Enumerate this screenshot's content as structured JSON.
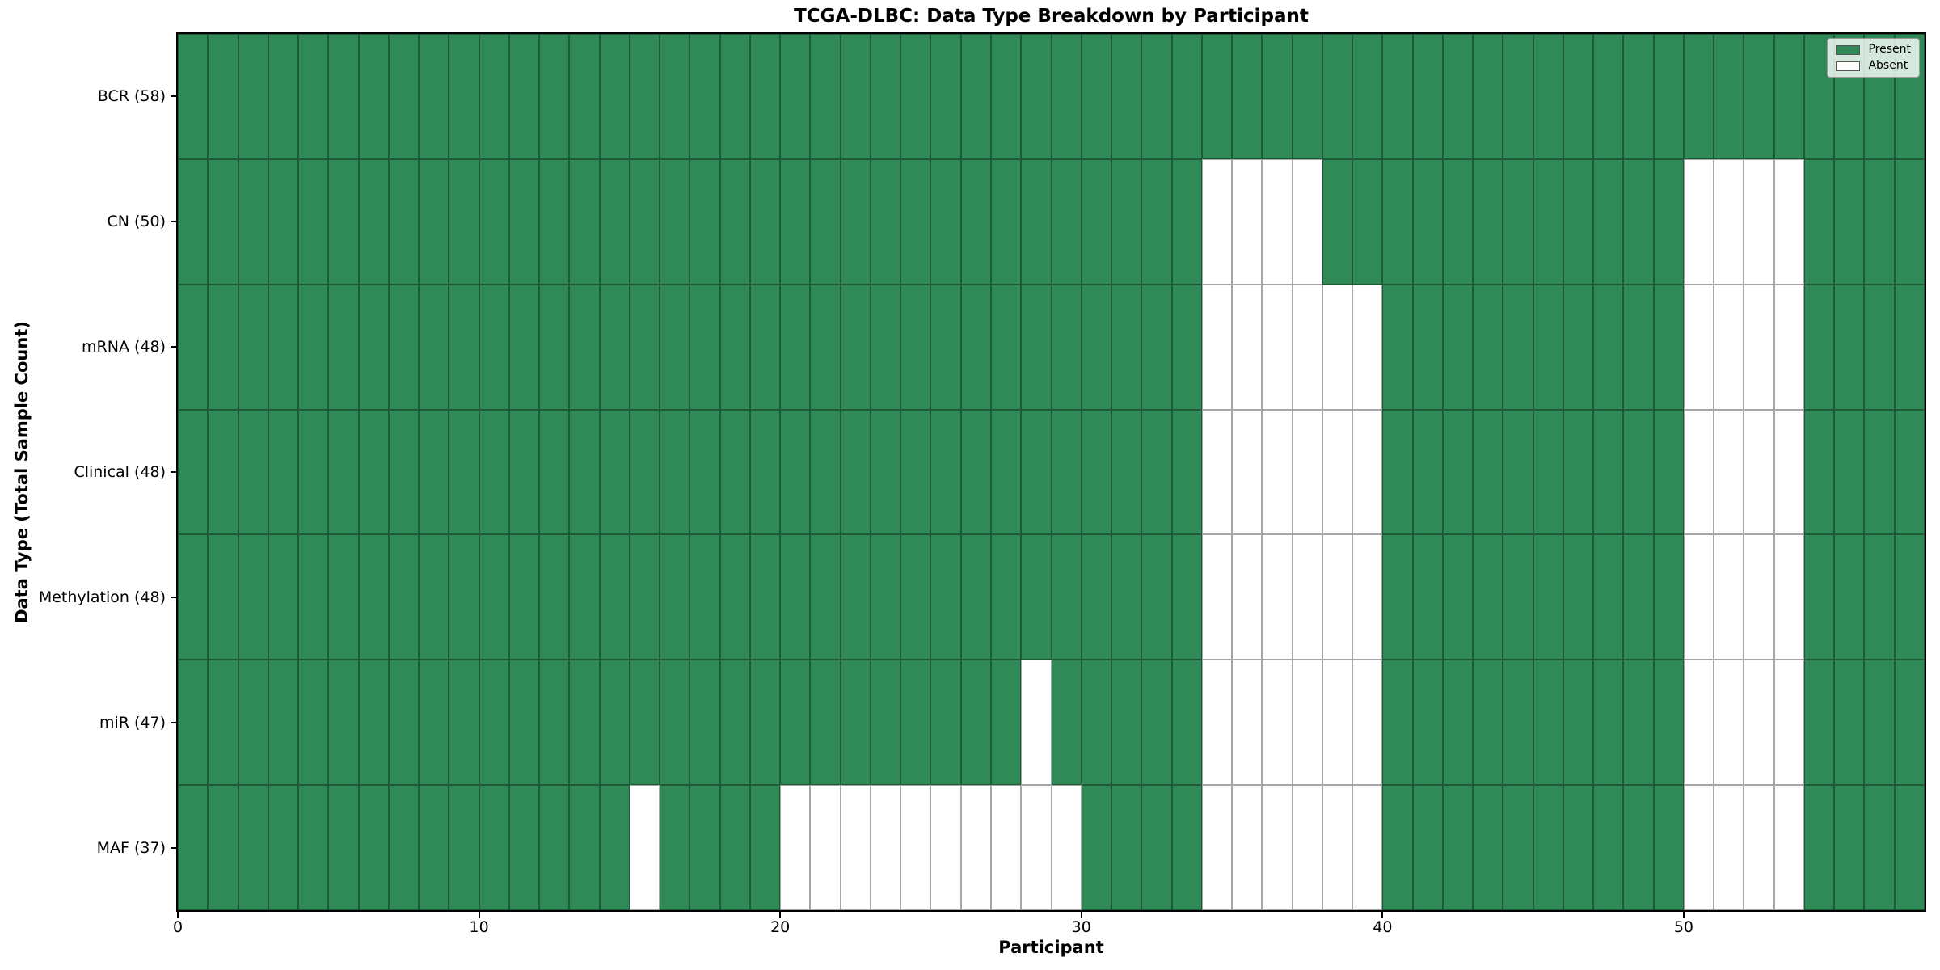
{
  "title": "TCGA-DLBC: Data Type Breakdown by Participant",
  "xlabel": "Participant",
  "ylabel": "Data Type (Total Sample Count)",
  "legend": {
    "present_label": "Present",
    "absent_label": "Absent"
  },
  "colors": {
    "present": "#2F8A57",
    "absent": "#FFFFFF",
    "cell_line": "rgba(0,0,0,0.35)",
    "spine": "#000000",
    "legend_background": "rgba(255,255,255,0.8)",
    "legend_border": "#999999"
  },
  "chart_data": {
    "type": "heatmap",
    "title": "TCGA-DLBC: Data Type Breakdown by Participant",
    "xlabel": "Participant",
    "ylabel": "Data Type (Total Sample Count)",
    "legend_entries": [
      "Present",
      "Absent"
    ],
    "legend_position": "upper right",
    "grid": "cell borders on",
    "n_participants": 58,
    "x_range": [
      0,
      58
    ],
    "x_tick_values": [
      0,
      10,
      20,
      30,
      40,
      50
    ],
    "rows": [
      {
        "label": "BCR (58)",
        "data_type": "BCR",
        "present_count": 58,
        "absent_participants": []
      },
      {
        "label": "CN (50)",
        "data_type": "CN",
        "present_count": 50,
        "absent_participants": [
          34,
          35,
          36,
          37,
          50,
          51,
          52,
          53
        ]
      },
      {
        "label": "mRNA (48)",
        "data_type": "mRNA",
        "present_count": 48,
        "absent_participants": [
          34,
          35,
          36,
          37,
          38,
          39,
          50,
          51,
          52,
          53
        ]
      },
      {
        "label": "Clinical (48)",
        "data_type": "Clinical",
        "present_count": 48,
        "absent_participants": [
          34,
          35,
          36,
          37,
          38,
          39,
          50,
          51,
          52,
          53
        ]
      },
      {
        "label": "Methylation (48)",
        "data_type": "Methylation",
        "present_count": 48,
        "absent_participants": [
          34,
          35,
          36,
          37,
          38,
          39,
          50,
          51,
          52,
          53
        ]
      },
      {
        "label": "miR (47)",
        "data_type": "miR",
        "present_count": 47,
        "absent_participants": [
          28,
          34,
          35,
          36,
          37,
          38,
          39,
          50,
          51,
          52,
          53
        ]
      },
      {
        "label": "MAF (37)",
        "data_type": "MAF",
        "present_count": 37,
        "absent_participants": [
          15,
          20,
          21,
          22,
          23,
          24,
          25,
          26,
          27,
          28,
          29,
          34,
          35,
          36,
          37,
          38,
          39,
          50,
          51,
          52,
          53
        ]
      }
    ]
  }
}
